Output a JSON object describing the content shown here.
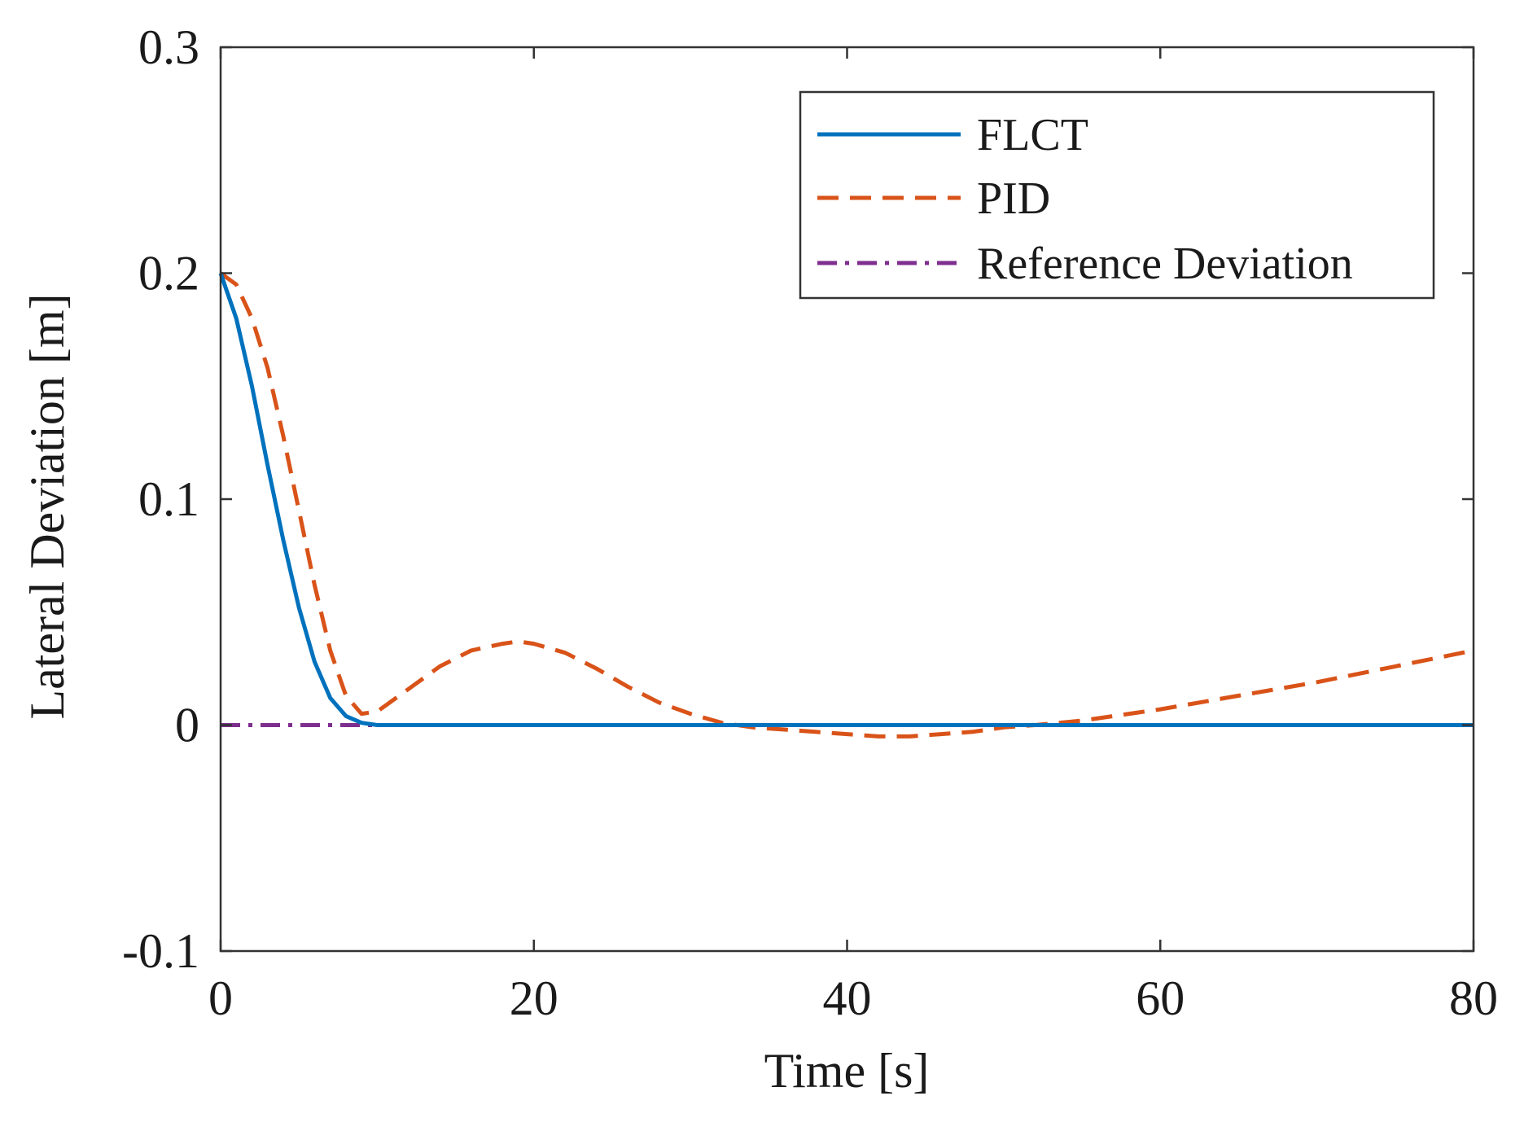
{
  "chart_data": {
    "type": "line",
    "title": "",
    "xlabel": "Time [s]",
    "ylabel": "Lateral Deviation [m]",
    "xlim": [
      0,
      80
    ],
    "ylim": [
      -0.1,
      0.3
    ],
    "xticks": [
      0,
      20,
      40,
      60,
      80
    ],
    "xtick_labels": [
      "0",
      "20",
      "40",
      "60",
      "80"
    ],
    "yticks": [
      -0.1,
      0,
      0.1,
      0.2,
      0.3
    ],
    "ytick_labels": [
      "-0.1",
      "0",
      "0.1",
      "0.2",
      "0.3"
    ],
    "grid": false,
    "legend_position": "top-right",
    "series": [
      {
        "name": "FLCT",
        "style": "solid",
        "color": "#0072BD",
        "x": [
          0,
          1,
          2,
          3,
          4,
          5,
          6,
          7,
          8,
          9,
          10,
          12,
          15,
          20,
          30,
          40,
          50,
          60,
          70,
          80
        ],
        "y": [
          0.2,
          0.18,
          0.15,
          0.115,
          0.082,
          0.052,
          0.028,
          0.012,
          0.004,
          0.001,
          0.0,
          0.0,
          0.0,
          0.0,
          0.0,
          0.0,
          0.0,
          0.0,
          0.0,
          0.0
        ]
      },
      {
        "name": "PID",
        "style": "dashed",
        "color": "#D95319",
        "x": [
          0,
          1,
          2,
          3,
          4,
          5,
          6,
          7,
          8,
          9,
          10,
          12,
          14,
          16,
          18,
          19,
          20,
          22,
          24,
          26,
          28,
          30,
          32,
          34,
          36,
          38,
          40,
          42,
          44,
          46,
          48,
          50,
          52,
          55,
          60,
          65,
          70,
          75,
          80
        ],
        "y": [
          0.2,
          0.195,
          0.18,
          0.158,
          0.128,
          0.095,
          0.062,
          0.033,
          0.013,
          0.005,
          0.006,
          0.016,
          0.026,
          0.033,
          0.036,
          0.037,
          0.036,
          0.032,
          0.025,
          0.017,
          0.01,
          0.005,
          0.001,
          -0.001,
          -0.002,
          -0.003,
          -0.004,
          -0.005,
          -0.005,
          -0.004,
          -0.003,
          -0.001,
          0.0,
          0.002,
          0.007,
          0.013,
          0.019,
          0.026,
          0.033
        ]
      },
      {
        "name": "Reference Deviation",
        "style": "dashdot",
        "color": "#7E2F8E",
        "x": [
          0,
          80
        ],
        "y": [
          0,
          0
        ]
      }
    ]
  }
}
